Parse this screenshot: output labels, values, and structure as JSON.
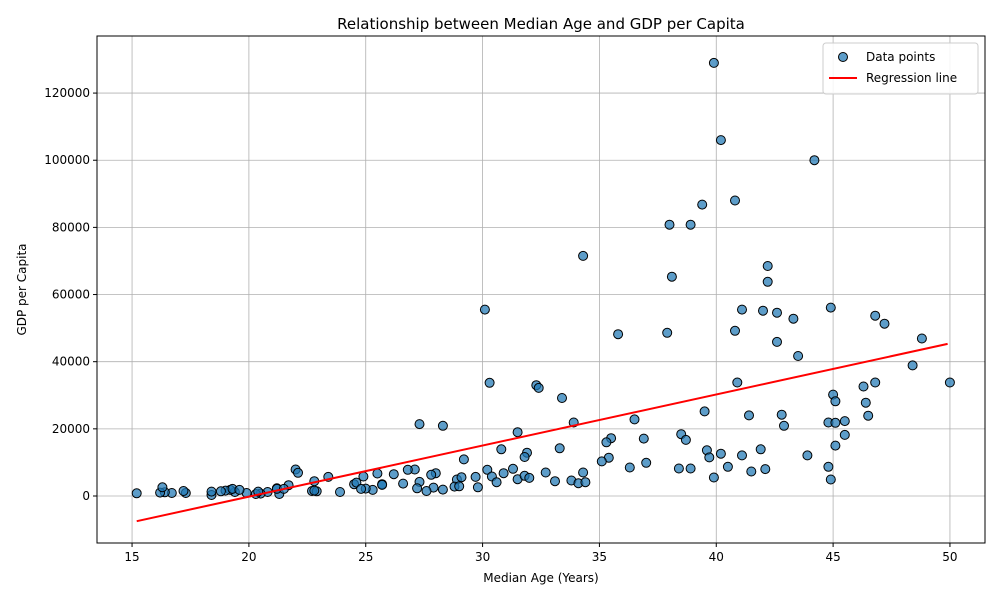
{
  "chart_data": {
    "type": "scatter",
    "title": "Relationship between Median Age and GDP per Capita",
    "xlabel": "Median Age (Years)",
    "ylabel": "GDP per Capita",
    "xlim": [
      13.5,
      51.5
    ],
    "ylim": [
      -14000,
      137000
    ],
    "xticks": [
      15,
      20,
      25,
      30,
      35,
      40,
      45,
      50
    ],
    "yticks": [
      0,
      20000,
      40000,
      60000,
      80000,
      100000,
      120000
    ],
    "grid": true,
    "legend": {
      "placement": "top-right",
      "entries": [
        "Data points",
        "Regression line"
      ]
    },
    "colors": {
      "points": "#1f77b4",
      "point_edge": "#000000",
      "regression": "#ff0000"
    },
    "series": [
      {
        "name": "Data points",
        "kind": "scatter",
        "x": [
          39.9,
          40.2,
          44.2,
          40.8,
          39.4,
          38.0,
          38.9,
          34.3,
          42.2,
          42.2,
          38.1,
          30.1,
          44.9,
          41.1,
          42.0,
          42.6,
          46.8,
          43.3,
          47.2,
          40.8,
          37.9,
          35.8,
          48.8,
          42.6,
          43.5,
          48.4,
          50.0,
          46.8,
          40.9,
          30.3,
          46.3,
          32.3,
          32.4,
          45.0,
          33.4,
          45.1,
          46.4,
          39.5,
          41.4,
          42.8,
          46.5,
          36.5,
          33.9,
          45.5,
          44.8,
          45.1,
          42.9,
          27.3,
          28.3,
          31.5,
          38.5,
          45.5,
          35.5,
          36.9,
          38.7,
          35.3,
          45.1,
          33.3,
          41.9,
          30.8,
          39.6,
          31.9,
          40.2,
          41.1,
          43.9,
          35.4,
          31.8,
          39.7,
          29.2,
          37.0,
          35.1,
          44.8,
          40.5,
          36.3,
          32.7,
          38.4,
          38.9,
          42.1,
          41.5,
          34.3,
          31.3,
          22.0,
          30.2,
          27.1,
          28.0,
          26.8,
          25.5,
          26.2,
          24.9,
          22.1,
          23.4,
          21.2,
          21.7,
          22.8,
          24.5,
          25.7,
          26.6,
          27.3,
          28.9,
          29.1,
          29.7,
          30.4,
          30.9,
          31.5,
          31.8,
          32.0,
          33.1,
          33.8,
          34.1,
          34.4,
          44.9,
          39.9,
          28.8,
          27.8,
          27.9,
          29.0,
          29.8,
          30.6,
          27.6,
          28.3,
          27.2,
          25.3,
          25.0,
          24.6,
          24.8,
          25.7,
          22.7,
          22.9,
          23.9,
          21.3,
          20.8,
          20.5,
          20.3,
          19.9,
          19.4,
          19.2,
          19.0,
          18.8,
          18.4,
          17.3,
          17.2,
          16.7,
          16.4,
          16.2,
          15.2,
          16.3,
          18.4,
          19.3,
          20.4,
          21.2,
          21.5,
          22.8,
          19.6
        ],
        "y": [
          129000,
          106000,
          100000,
          88000,
          86800,
          80800,
          80800,
          71500,
          68500,
          63800,
          65300,
          55500,
          56100,
          55500,
          55200,
          54600,
          53700,
          52800,
          51300,
          49200,
          48600,
          48200,
          46900,
          45900,
          41700,
          38900,
          33800,
          33800,
          33800,
          33700,
          32600,
          33000,
          32200,
          30200,
          29200,
          28200,
          27800,
          25200,
          24000,
          24200,
          23900,
          22800,
          21900,
          22300,
          21900,
          21800,
          20900,
          21400,
          20900,
          19000,
          18400,
          18200,
          17200,
          17100,
          16700,
          16000,
          15000,
          14200,
          13900,
          13900,
          13600,
          12900,
          12600,
          12100,
          12100,
          11400,
          11600,
          11500,
          10900,
          9900,
          10300,
          8700,
          8700,
          8500,
          7000,
          8200,
          8200,
          8000,
          7300,
          7000,
          8100,
          7900,
          7800,
          7900,
          6800,
          7800,
          6700,
          6500,
          5800,
          6900,
          5700,
          2300,
          3200,
          4400,
          3500,
          3500,
          3700,
          4200,
          4900,
          5600,
          5700,
          5800,
          6800,
          5000,
          6000,
          5400,
          4400,
          4600,
          3800,
          4100,
          4900,
          5500,
          2800,
          6300,
          2500,
          2900,
          2600,
          4100,
          1500,
          1900,
          2300,
          1800,
          2200,
          4000,
          2100,
          3300,
          1500,
          1400,
          1200,
          600,
          1200,
          700,
          600,
          900,
          1200,
          1800,
          1600,
          1400,
          300,
          900,
          1500,
          900,
          1100,
          1000,
          800,
          2600,
          1300,
          2100,
          1300,
          2100,
          2100,
          1600,
          1800
        ]
      },
      {
        "name": "Regression line",
        "kind": "line",
        "x": [
          15.2,
          49.9
        ],
        "y": [
          -7500,
          45300
        ]
      }
    ]
  }
}
